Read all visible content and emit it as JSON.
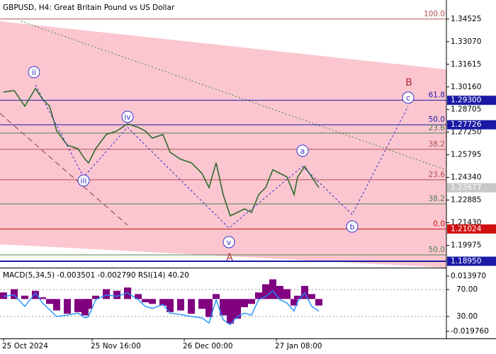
{
  "chart_data": [
    {
      "type": "line",
      "title": "GBPUSD, H4:  Great Britain Pound vs US Dollar",
      "xlim": [
        0,
        126
      ],
      "ylim": [
        1.1854,
        1.3575
      ],
      "xticks": [
        {
          "value": 1,
          "label": "25 Oct 2024"
        },
        {
          "value": 26,
          "label": "25 Nov 16:00"
        },
        {
          "value": 52,
          "label": "26 Dec 00:00"
        },
        {
          "value": 78,
          "label": "27 Jan 08:00"
        }
      ],
      "yticks": [
        {
          "value": 1.34525,
          "label": "1.34525"
        },
        {
          "value": 1.3307,
          "label": "1.33070"
        },
        {
          "value": 1.31615,
          "label": "1.31615"
        },
        {
          "value": 1.3016,
          "label": "1.30160"
        },
        {
          "value": 1.28705,
          "label": "1.28705"
        },
        {
          "value": 1.2725,
          "label": "1.27250"
        },
        {
          "value": 1.25795,
          "label": "1.25795"
        },
        {
          "value": 1.2434,
          "label": "1.24340"
        },
        {
          "value": 1.22885,
          "label": "1.22885"
        },
        {
          "value": 1.2143,
          "label": "1.21430"
        },
        {
          "value": 1.19975,
          "label": "1.19975"
        }
      ],
      "price_markers": [
        {
          "value": 1.293,
          "label": "1.29300",
          "color": "#1a1aa6"
        },
        {
          "value": 1.27726,
          "label": "1.27726",
          "color": "#1a1aa6"
        },
        {
          "value": 1.23677,
          "label": "1.23677",
          "color": "#c8c8c8"
        },
        {
          "value": 1.21024,
          "label": "1.21024",
          "color": "#d01010"
        },
        {
          "value": 1.1895,
          "label": "1.18950",
          "color": "#1a1aa6"
        }
      ],
      "levels": [
        {
          "value": 1.34525,
          "label": "100.0",
          "color": "#b05050"
        },
        {
          "value": 1.293,
          "label": "61.8",
          "color": "#1a1aa6"
        },
        {
          "value": 1.27726,
          "label": "50.0",
          "color": "#1a1aa6"
        },
        {
          "value": 1.2719,
          "label": "23.6",
          "color": "#508050"
        },
        {
          "value": 1.2615,
          "label": "38.2",
          "color": "#b05050"
        },
        {
          "value": 1.2419,
          "label": "23.6",
          "color": "#b05050"
        },
        {
          "value": 1.2264,
          "label": "38.2",
          "color": "#508050"
        },
        {
          "value": 1.21024,
          "label": "0.0",
          "color": "#d01010"
        },
        {
          "value": 1.1936,
          "label": "50.0",
          "color": "#508050"
        },
        {
          "value": 1.1895,
          "label": ""
        }
      ],
      "x": [
        1,
        4,
        7,
        10,
        12,
        14,
        16,
        19,
        22,
        24,
        25,
        27,
        30,
        33,
        36,
        39,
        41,
        43,
        46,
        48,
        51,
        54,
        57,
        59,
        61,
        63,
        65,
        67,
        69,
        71,
        73,
        75,
        77,
        79,
        81,
        83,
        84,
        86,
        88,
        90
      ],
      "series": [
        {
          "name": "GBPUSD",
          "color": "#2e6b2e",
          "values": [
            1.2983,
            1.2993,
            1.2892,
            1.3006,
            1.2938,
            1.2892,
            1.2733,
            1.2642,
            1.2619,
            1.2551,
            1.2528,
            1.2619,
            1.271,
            1.2733,
            1.2779,
            1.2756,
            1.2733,
            1.2687,
            1.271,
            1.2596,
            1.2551,
            1.2528,
            1.246,
            1.2369,
            1.2528,
            1.2323,
            1.2187,
            1.2209,
            1.2232,
            1.2209,
            1.2323,
            1.2369,
            1.2483,
            1.246,
            1.2437,
            1.2323,
            1.2437,
            1.2505,
            1.2437,
            1.2369
          ]
        }
      ],
      "wave_path": {
        "color": "#3030d0",
        "x": [
          10,
          23.6,
          36,
          64.6,
          85.4,
          99.4,
          115.2
        ],
        "values": [
          1.3029,
          1.2437,
          1.2756,
          1.2109,
          1.2505,
          1.2196,
          1.2892
        ]
      },
      "annotations": [
        {
          "text": "ii",
          "x": 9.6,
          "y": 1.3111,
          "circle": true
        },
        {
          "text": "iii",
          "x": 23.6,
          "y": 1.2414,
          "circle": true
        },
        {
          "text": "iv",
          "x": 36,
          "y": 1.2824,
          "circle": true
        },
        {
          "text": "v",
          "x": 64.6,
          "y": 1.2018,
          "circle": true
        },
        {
          "text": "a",
          "x": 85.4,
          "y": 1.2606,
          "circle": true
        },
        {
          "text": "b",
          "x": 99.4,
          "y": 1.2118,
          "circle": true
        },
        {
          "text": "c",
          "x": 115.2,
          "y": 1.2947,
          "circle": true
        },
        {
          "text": "B",
          "x": 115.4,
          "y": 1.3047,
          "circle": false
        },
        {
          "text": "A",
          "x": 64.8,
          "y": 1.1922,
          "circle": false
        }
      ]
    },
    {
      "type": "bar",
      "title": "MACD(5,34,5) -0.003501 -0.002790 RSI(14) 40.20",
      "ylim": [
        -0.02408,
        0.01829
      ],
      "yticks": [
        {
          "value": 0.01397,
          "label": "0.013970"
        },
        {
          "value": -0.01976,
          "label": "-0.019760"
        }
      ],
      "y2lim": [
        -2.6,
        100.5
      ],
      "y2ticks": [
        {
          "value": 70,
          "label": "70.00"
        },
        {
          "value": 30,
          "label": "30.00"
        }
      ],
      "series": [
        {
          "name": "MACD",
          "color": "#800080",
          "values": [
            0.004,
            0.006,
            0.002,
            0.005,
            0.001,
            -0.003,
            -0.007,
            -0.009,
            -0.008,
            -0.01,
            -0.006,
            0.002,
            0.006,
            0.005,
            0.007,
            0.003,
            -0.002,
            -0.003,
            -0.004,
            -0.008,
            -0.007,
            -0.009,
            -0.006,
            -0.011,
            0.003,
            -0.01,
            -0.015,
            -0.012,
            -0.005,
            -0.003,
            0.004,
            0.009,
            0.012,
            0.008,
            0.006,
            -0.004,
            0.002,
            0.008,
            0.003,
            -0.004
          ]
        },
        {
          "name": "RSI",
          "color": "#1e90ff",
          "axis": "y2",
          "values": [
            60,
            62,
            45,
            65,
            50,
            40,
            30,
            32,
            35,
            28,
            30,
            55,
            62,
            60,
            65,
            55,
            45,
            42,
            48,
            35,
            33,
            30,
            28,
            20,
            55,
            25,
            18,
            30,
            35,
            32,
            55,
            60,
            68,
            55,
            50,
            38,
            52,
            65,
            45,
            38
          ]
        }
      ]
    }
  ]
}
